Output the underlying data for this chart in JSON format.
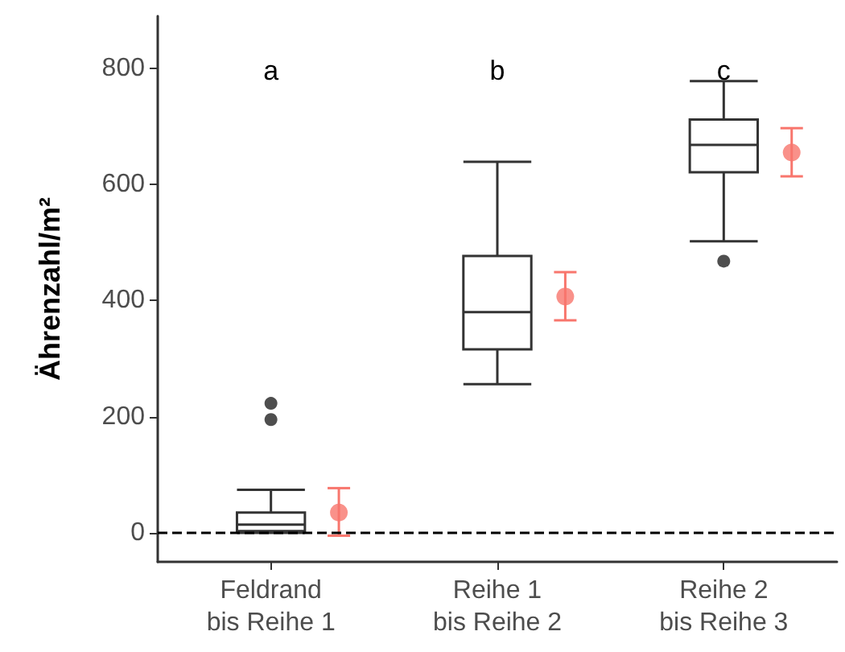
{
  "chart_data": {
    "type": "box",
    "ylabel": "Ährenzahl/m²",
    "categories": [
      "Feldrand\nbis Reihe 1",
      "Reihe 1\nbis Reihe 2",
      "Reihe 2\nbis Reihe 3"
    ],
    "boxes": [
      {
        "low": 0,
        "q1": 3,
        "median": 14,
        "q3": 35,
        "high": 74,
        "outliers": [
          195,
          223
        ]
      },
      {
        "low": 256,
        "q1": 316,
        "median": 380,
        "q3": 477,
        "high": 639
      },
      {
        "low": 502,
        "q1": 621,
        "median": 668,
        "q3": 712,
        "high": 778,
        "outliers": [
          468
        ]
      }
    ],
    "series": [
      {
        "type": "scatter",
        "color": "#f8766d",
        "values": [
          35,
          407,
          655
        ],
        "errors": [
          [
            -5,
            77
          ],
          [
            366,
            449
          ],
          [
            614,
            697
          ]
        ]
      }
    ],
    "marker": "circle",
    "ylim": [
      -50,
      890
    ],
    "yticks": [
      0,
      200,
      400,
      600,
      800
    ],
    "grid": false,
    "ref_lines": [
      {
        "axis": "y",
        "value": 0,
        "color": "#000000",
        "line_style": "dashed"
      }
    ],
    "annotations": [
      "a",
      "b",
      "c"
    ]
  }
}
